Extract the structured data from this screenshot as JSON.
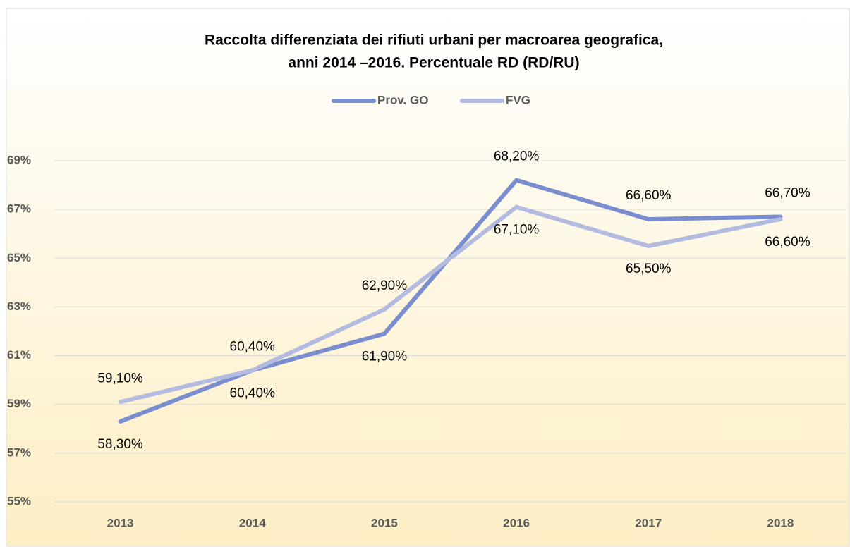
{
  "chart_data": {
    "type": "line",
    "title": "Raccolta differenziata dei rifiuti urbani per macroarea geografica,",
    "subtitle": "anni 2014 –2016. Percentuale RD (RD/RU)",
    "categories": [
      "2013",
      "2014",
      "2015",
      "2016",
      "2017",
      "2018"
    ],
    "series": [
      {
        "name": "Prov. GO",
        "color": "#7a8ecf",
        "values": [
          58.3,
          60.4,
          61.9,
          68.2,
          66.6,
          66.7
        ],
        "value_labels": [
          "58,30%",
          "60,40%",
          "61,90%",
          "68,20%",
          "66,60%",
          "66,70%"
        ]
      },
      {
        "name": "FVG",
        "color": "#b3bce0",
        "values": [
          59.1,
          60.4,
          62.9,
          67.1,
          65.5,
          66.6
        ],
        "value_labels": [
          "59,10%",
          "60,40%",
          "62,90%",
          "67,10%",
          "65,50%",
          "66,60%"
        ]
      }
    ],
    "ylim": [
      55,
      69
    ],
    "yticks": [
      {
        "value": 55,
        "label": "55%"
      },
      {
        "value": 57,
        "label": "57%"
      },
      {
        "value": 59,
        "label": "59%"
      },
      {
        "value": 61,
        "label": "61%"
      },
      {
        "value": 63,
        "label": "63%"
      },
      {
        "value": 65,
        "label": "65%"
      },
      {
        "value": 67,
        "label": "67%"
      },
      {
        "value": 69,
        "label": "69%"
      }
    ],
    "grid": true,
    "legend": "top"
  }
}
